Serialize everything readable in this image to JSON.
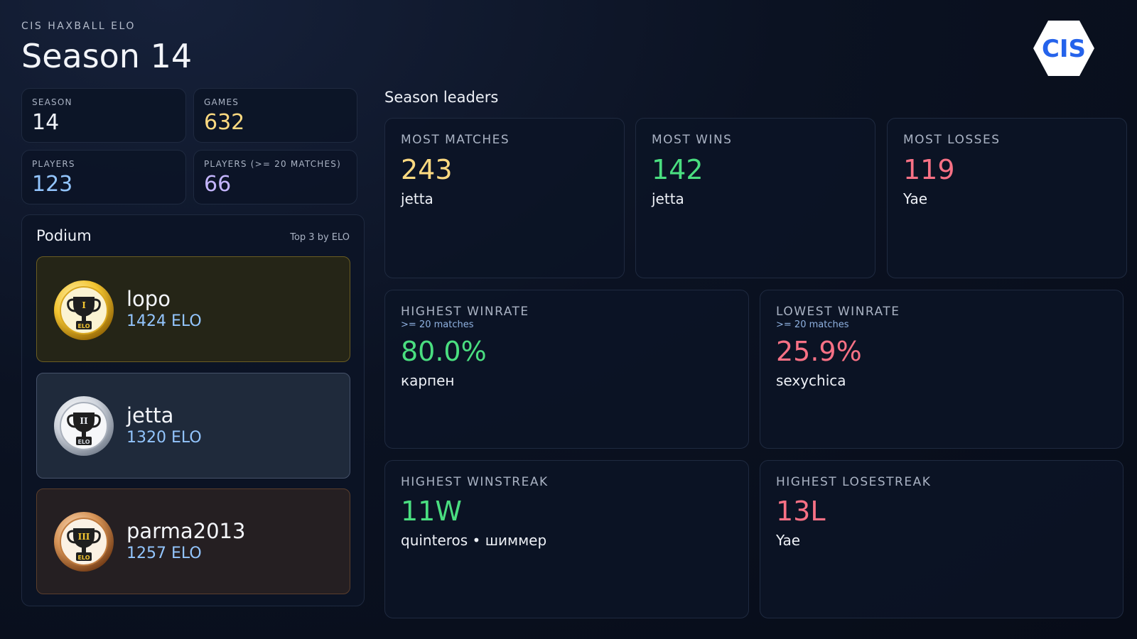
{
  "header": {
    "eyebrow": "CIS HAXBALL ELO",
    "title": "Season 14",
    "logo_text": "CIS"
  },
  "stats": {
    "season": {
      "label": "SEASON",
      "value": "14"
    },
    "games": {
      "label": "GAMES",
      "value": "632"
    },
    "players": {
      "label": "PLAYERS",
      "value": "123"
    },
    "players_20": {
      "label": "PLAYERS (>= 20 MATCHES)",
      "value": "66"
    }
  },
  "podium": {
    "title": "Podium",
    "note": "Top 3 by ELO",
    "medal_text": "ELO",
    "entries": [
      {
        "name": "lopo",
        "elo": "1424 ELO",
        "rank": "I"
      },
      {
        "name": "jetta",
        "elo": "1320 ELO",
        "rank": "II"
      },
      {
        "name": "parma2013",
        "elo": "1257 ELO",
        "rank": "III"
      }
    ]
  },
  "leaders": {
    "title": "Season leaders",
    "most_matches": {
      "label": "MOST MATCHES",
      "value": "243",
      "name": "jetta"
    },
    "most_wins": {
      "label": "MOST WINS",
      "value": "142",
      "name": "jetta"
    },
    "most_losses": {
      "label": "MOST LOSSES",
      "value": "119",
      "name": "Yae"
    },
    "highest_winrate": {
      "label": "HIGHEST WINRATE",
      "sub": ">= 20 matches",
      "value": "80.0%",
      "name": "карпен"
    },
    "lowest_winrate": {
      "label": "LOWEST WINRATE",
      "sub": ">= 20 matches",
      "value": "25.9%",
      "name": "sexychica"
    },
    "highest_winstreak": {
      "label": "HIGHEST WINSTREAK",
      "value": "11W",
      "name": "quinteros • шиммер"
    },
    "highest_losestreak": {
      "label": "HIGHEST LOSESTREAK",
      "value": "13L",
      "name": "Yae"
    }
  },
  "colors": {
    "positive": "#4ade80",
    "negative": "#f87185",
    "accent_blue": "#93c5fd",
    "logo_blue": "#2563eb"
  }
}
